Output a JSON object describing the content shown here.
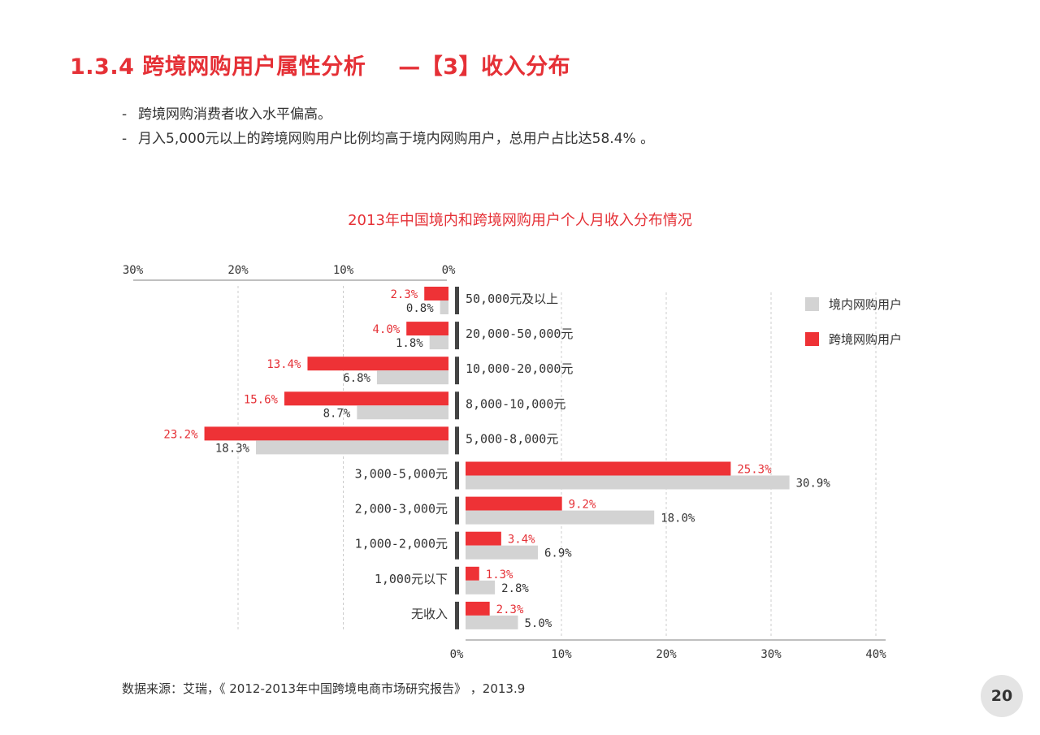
{
  "header": {
    "title_main": "1.3.4 跨境网购用户属性分析",
    "title_sub": "—【3】收入分布"
  },
  "bullets": [
    "跨境网购消费者收入水平偏高。",
    "月入5,000元以上的跨境网购用户比例均高于境内网购用户，总用户占比达58.4% 。"
  ],
  "colors": {
    "accent": "#e53036",
    "domestic_bar": "#d3d3d3",
    "cross_border_bar": "#ee3236",
    "axis_bar": "#444444",
    "gridline": "#cccccc"
  },
  "chart_data": {
    "type": "bar",
    "orientation": "horizontal-butterfly",
    "title": "2013年中国境内和跨境网购用户个人月收入分布情况",
    "categories": [
      "50,000元及以上",
      "20,000-50,000元",
      "10,000-20,000元",
      "8,000-10,000元",
      "5,000-8,000元",
      "3,000-5,000元",
      "2,000-3,000元",
      "1,000-2,000元",
      "1,000元以下",
      "无收入"
    ],
    "series": [
      {
        "name": "跨境网购用户",
        "color": "#ee3236",
        "values": [
          2.3,
          4.0,
          13.4,
          15.6,
          23.2,
          25.3,
          9.2,
          3.4,
          1.3,
          2.3
        ]
      },
      {
        "name": "境内网购用户",
        "color": "#d3d3d3",
        "values": [
          0.8,
          1.8,
          6.8,
          8.7,
          18.3,
          30.9,
          18.0,
          6.9,
          2.8,
          5.0
        ]
      }
    ],
    "value_labels": {
      "跨境网购用户": [
        "2.3%",
        "4.0%",
        "13.4%",
        "15.6%",
        "23.2%",
        "25.3%",
        "9.2%",
        "3.4%",
        "1.3%",
        "2.3%"
      ],
      "境内网购用户": [
        "0.8%",
        "1.8%",
        "6.8%",
        "8.7%",
        "18.3%",
        "30.9%",
        "18.0%",
        "6.9%",
        "2.8%",
        "5.0%"
      ]
    },
    "left_axis_ticks": [
      "30%",
      "20%",
      "10%",
      "0%"
    ],
    "left_axis_range": [
      0,
      30
    ],
    "right_axis_ticks": [
      "0%",
      "10%",
      "20%",
      "30%",
      "40%"
    ],
    "right_axis_range": [
      0,
      40
    ],
    "left_side_categories": [
      "50,000元及以上",
      "20,000-50,000元",
      "10,000-20,000元",
      "8,000-10,000元",
      "5,000-8,000元"
    ],
    "right_side_categories": [
      "3,000-5,000元",
      "2,000-3,000元",
      "1,000-2,000元",
      "1,000元以下",
      "无收入"
    ],
    "grid": "vertical dashed",
    "legend": [
      {
        "name": "境内网购用户",
        "color": "#d3d3d3"
      },
      {
        "name": "跨境网购用户",
        "color": "#ee3236"
      }
    ],
    "legend_position": "right"
  },
  "source": "数据来源：艾瑞，《 2012-2013年中国跨境电商市场研究报告》 ，2013.9",
  "page_number": "20"
}
